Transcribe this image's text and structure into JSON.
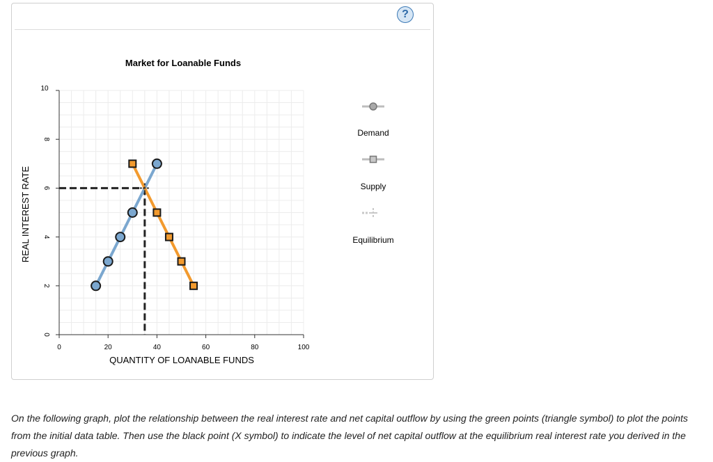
{
  "help_button": {
    "label": "?"
  },
  "instructions": "On the following graph, plot the relationship between the real interest rate and net capital outflow by using the green points (triangle symbol) to plot the points from the initial data table. Then use the black point (X symbol) to indicate the level of net capital outflow at the equilibrium real interest rate you derived in the previous graph.",
  "chart_data": {
    "type": "line",
    "title": "Market for Loanable Funds",
    "xlabel": "QUANTITY OF LOANABLE FUNDS",
    "ylabel": "REAL INTEREST RATE",
    "xlim": [
      0,
      100
    ],
    "ylim": [
      0,
      10
    ],
    "xticks": [
      0,
      20,
      40,
      60,
      80,
      100
    ],
    "yticks": [
      0,
      2,
      4,
      6,
      8,
      10
    ],
    "grid": true,
    "legend_position": "right",
    "series": [
      {
        "name": "Demand",
        "color": "#7ba7cf",
        "marker": "circle",
        "points": [
          [
            15,
            2
          ],
          [
            20,
            3
          ],
          [
            25,
            4
          ],
          [
            30,
            5
          ],
          [
            40,
            7
          ]
        ]
      },
      {
        "name": "Supply",
        "color": "#f29a2e",
        "marker": "square",
        "points": [
          [
            30,
            7
          ],
          [
            40,
            5
          ],
          [
            45,
            4
          ],
          [
            50,
            3
          ],
          [
            55,
            2
          ]
        ]
      }
    ],
    "equilibrium": {
      "name": "Equilibrium",
      "x": 35,
      "y": 6
    }
  }
}
